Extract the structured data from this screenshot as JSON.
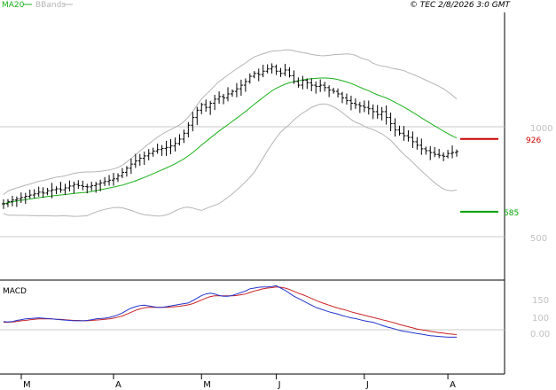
{
  "header": {
    "ma_label": "MA20",
    "bands_label": "BBands",
    "copyright": "© TEC 2/8/2026 3:0 GMT"
  },
  "colors": {
    "price": "#000000",
    "ma20": "#18b018",
    "bbands": "#b4b4b4",
    "resistance": "#cc0000",
    "support": "#00a000",
    "macd": "#2233cc",
    "signal": "#cc2222",
    "grid": "#c8c8c8",
    "axis_text": "#c0c0c0"
  },
  "chart_data": [
    {
      "type": "ohlc",
      "title": "",
      "scale": "log",
      "ylim": [
        420,
        1550
      ],
      "yticks": [
        500,
        1000
      ],
      "ytick_labels": [
        "500",
        "1000"
      ],
      "x_labels": [
        "M",
        "A",
        "M",
        "J",
        "J",
        "A"
      ],
      "x_label_index": [
        0,
        25,
        45,
        62,
        82,
        101
      ],
      "n_bars": 104,
      "close": [
        615,
        624,
        630,
        635,
        640,
        645,
        650,
        655,
        662,
        658,
        668,
        672,
        676,
        672,
        680,
        688,
        695,
        690,
        686,
        684,
        690,
        696,
        702,
        708,
        714,
        720,
        734,
        750,
        770,
        790,
        806,
        820,
        832,
        845,
        858,
        866,
        872,
        878,
        886,
        900,
        925,
        960,
        1010,
        1060,
        1110,
        1150,
        1130,
        1160,
        1190,
        1210,
        1200,
        1230,
        1250,
        1270,
        1300,
        1330,
        1375,
        1400,
        1390,
        1420,
        1440,
        1460,
        1420,
        1400,
        1430,
        1380,
        1330,
        1300,
        1340,
        1320,
        1300,
        1290,
        1300,
        1280,
        1260,
        1250,
        1230,
        1200,
        1180,
        1160,
        1150,
        1140,
        1130,
        1120,
        1100,
        1080,
        1100,
        1060,
        1020,
        980,
        960,
        945,
        935,
        910,
        890,
        870,
        860,
        850,
        840,
        835,
        830,
        845,
        850,
        855
      ],
      "resistance": {
        "value": 926,
        "label": "926"
      },
      "support": {
        "value": 585,
        "label": "585"
      }
    },
    {
      "type": "line",
      "title": "MACD",
      "ylim": [
        -20,
        250
      ],
      "yticks": [
        0,
        100,
        150
      ],
      "ytick_labels": [
        "0.00",
        "100",
        "150"
      ],
      "x_labels": [
        "M",
        "A",
        "M",
        "J",
        "J",
        "A"
      ],
      "series": [
        {
          "key": "macd",
          "values": [
            22,
            21,
            22,
            25,
            27,
            29,
            30,
            31,
            32,
            31,
            30,
            29,
            28,
            27,
            26,
            25,
            24,
            24,
            24,
            25,
            27,
            29,
            30,
            31,
            33,
            36,
            40,
            45,
            52,
            58,
            62,
            65,
            66,
            64,
            62,
            60,
            60,
            62,
            64,
            66,
            68,
            70,
            72,
            78,
            85,
            92,
            96,
            98,
            96,
            92,
            90,
            90,
            92,
            96,
            100,
            104,
            110,
            112,
            114,
            115,
            115,
            116,
            118,
            112,
            106,
            98,
            90,
            84,
            78,
            72,
            66,
            60,
            56,
            52,
            48,
            45,
            42,
            38,
            35,
            32,
            30,
            27,
            24,
            22,
            20,
            16,
            12,
            8,
            5,
            2,
            -2,
            -4,
            -6,
            -8,
            -10,
            -12,
            -14,
            -16,
            -17,
            -18,
            -19,
            -20,
            -20,
            -20
          ]
        },
        {
          "key": "signal",
          "values": [
            20,
            20,
            21,
            22,
            24,
            25,
            27,
            28,
            29,
            29,
            29,
            29,
            28,
            28,
            27,
            26,
            25,
            25,
            24,
            24,
            25,
            26,
            27,
            28,
            29,
            31,
            34,
            37,
            42,
            47,
            52,
            56,
            59,
            60,
            60,
            60,
            60,
            60,
            61,
            62,
            63,
            65,
            67,
            70,
            75,
            80,
            85,
            89,
            91,
            91,
            91,
            91,
            91,
            92,
            94,
            96,
            100,
            104,
            107,
            110,
            112,
            113,
            115,
            114,
            112,
            108,
            103,
            98,
            94,
            89,
            84,
            79,
            74,
            70,
            66,
            62,
            58,
            55,
            52,
            48,
            45,
            42,
            39,
            36,
            33,
            30,
            27,
            24,
            21,
            18,
            14,
            11,
            8,
            5,
            2,
            0,
            -2,
            -4,
            -6,
            -8,
            -9,
            -11,
            -12,
            -13
          ]
        }
      ]
    }
  ]
}
